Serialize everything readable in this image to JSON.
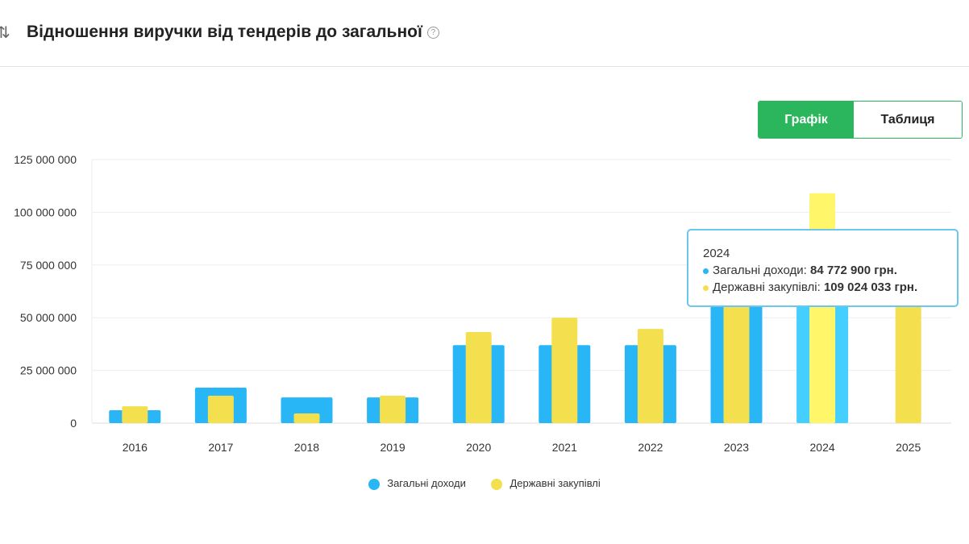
{
  "header": {
    "title": "Відношення виручки від тендерів до загальної",
    "sort_icon": "sort-arrows-icon",
    "help_icon": "question-circle-icon"
  },
  "toggle": {
    "chart_label": "Графік",
    "table_label": "Таблиця",
    "active": "chart"
  },
  "tooltip": {
    "year": "2024",
    "rows": [
      {
        "label": "Загальні доходи:",
        "value": "84 772 900 грн.",
        "color": "#29b6f6"
      },
      {
        "label": "Державні закупівлі:",
        "value": "109 024 033 грн.",
        "color": "#f4df4e"
      }
    ]
  },
  "chart_data": {
    "type": "bar",
    "categories": [
      "2016",
      "2017",
      "2018",
      "2019",
      "2020",
      "2021",
      "2022",
      "2023",
      "2024",
      "2025"
    ],
    "series": [
      {
        "name": "Загальні доходи",
        "color": "#29b6f6",
        "values": [
          6100000,
          16800000,
          12200000,
          12200000,
          37000000,
          37000000,
          37000000,
          70000000,
          84772900,
          0
        ]
      },
      {
        "name": "Державні закупівлі",
        "color": "#f4df4e",
        "values": [
          8000000,
          13000000,
          4600000,
          13000000,
          43200000,
          50000000,
          44700000,
          65000000,
          109024033,
          60000000
        ]
      }
    ],
    "ylim": [
      0,
      125000000
    ],
    "yticks": [
      "0",
      "25 000 000",
      "50 000 000",
      "75 000 000",
      "100 000 000",
      "125 000 000"
    ],
    "grid": true,
    "legend": "bottom",
    "highlighted": "2024"
  }
}
